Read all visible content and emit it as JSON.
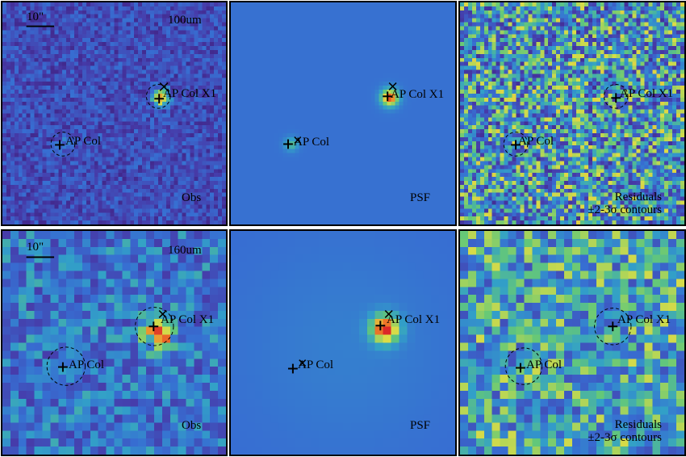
{
  "rows": [
    {
      "band": "100um",
      "scale_label": "10\"",
      "panels": [
        {
          "kind": "obs",
          "label": "Obs"
        },
        {
          "kind": "psf",
          "label": "PSF"
        },
        {
          "kind": "res",
          "label_line1": "Residuals",
          "label_line2": "±2-3σ contours"
        }
      ]
    },
    {
      "band": "160um",
      "scale_label": "10\"",
      "panels": [
        {
          "kind": "obs",
          "label": "Obs"
        },
        {
          "kind": "psf",
          "label": "PSF"
        },
        {
          "kind": "res",
          "label_line1": "Residuals",
          "label_line2": "±2-3σ contours"
        }
      ]
    }
  ],
  "sources": {
    "primary": "AP Col X1",
    "secondary": "AP Col"
  },
  "colors": {
    "background_blue": "#3a64c8",
    "marker": "#000000"
  }
}
